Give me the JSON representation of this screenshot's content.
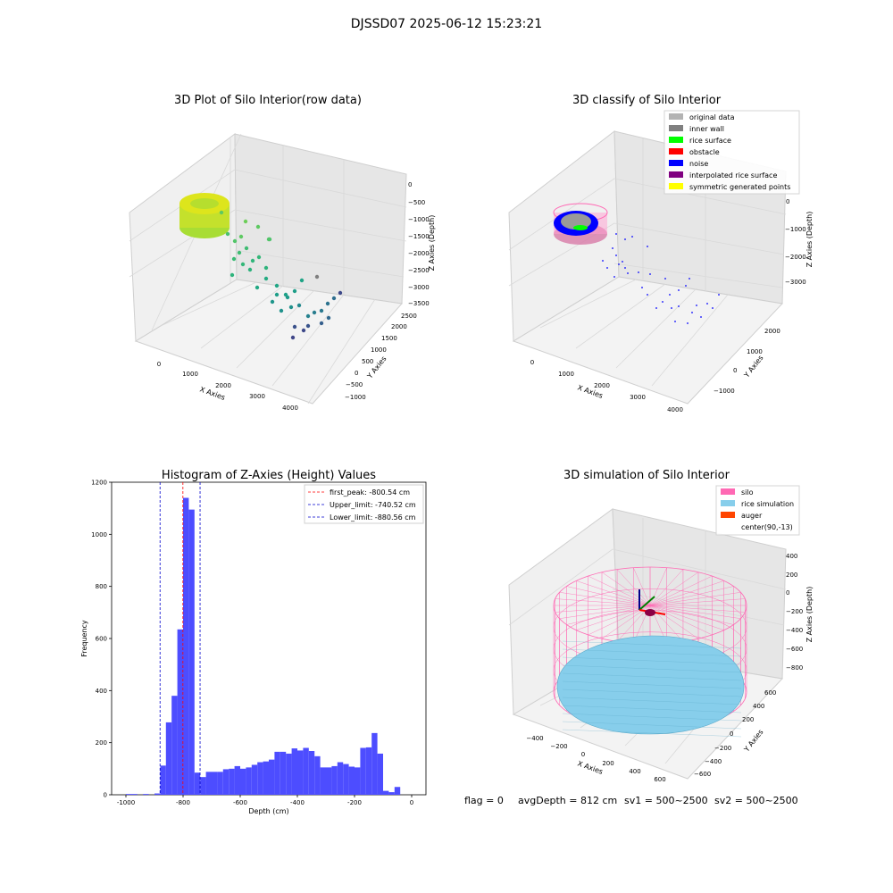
{
  "suptitle": "DJSSD07 2025-06-12 15:23:21",
  "status_line": {
    "flag": "flag = 0",
    "avg_depth": "avgDepth = 812 cm",
    "sv1": "sv1 = 500~2500",
    "sv2": "sv2 = 500~2500"
  },
  "colors": {
    "histogram_bar": "#4d4dff",
    "first_peak_line": "#ff0000",
    "limit_lines": "#0000cc",
    "silo": "#ff69b4",
    "rice_simulation": "#87ceeb",
    "auger": "#ff4500",
    "noise": "#0000ff"
  },
  "chart_data": [
    {
      "type": "scatter3d",
      "title": "3D Plot of Silo Interior(row data)",
      "xlabel": "X Axies",
      "ylabel": "Y Axies",
      "zlabel": "Z Axies (Depth)",
      "x_ticks": [
        "0",
        "1000",
        "2000",
        "3000",
        "4000"
      ],
      "y_ticks": [
        "−1000",
        "−500",
        "0",
        "500",
        "1000",
        "1500",
        "2000",
        "2500"
      ],
      "z_ticks": [
        "0",
        "−500",
        "−1000",
        "−1500",
        "−2000",
        "−2500",
        "−3000",
        "−3500"
      ],
      "colormap": "viridis"
    },
    {
      "type": "scatter3d",
      "title": "3D classify of Silo Interior",
      "xlabel": "X Axies",
      "ylabel": "Y Axies",
      "zlabel": "Z Axies (Depth)",
      "x_ticks": [
        "0",
        "1000",
        "2000",
        "3000",
        "4000"
      ],
      "y_ticks": [
        "−1000",
        "0",
        "1000",
        "2000"
      ],
      "z_ticks": [
        "0",
        "−1000",
        "−2000",
        "−3000"
      ],
      "legend_position": "top-right",
      "legend": [
        {
          "label": "original data",
          "color": "#b3b3b3"
        },
        {
          "label": "inner wall",
          "color": "#808080"
        },
        {
          "label": "rice surface",
          "color": "#00ff00"
        },
        {
          "label": "obstacle",
          "color": "#ff0000"
        },
        {
          "label": "noise",
          "color": "#0000ff"
        },
        {
          "label": "interpolated rice surface",
          "color": "#800080"
        },
        {
          "label": "symmetric generated points",
          "color": "#ffff00"
        }
      ]
    },
    {
      "type": "bar",
      "title": "Histogram of Z-Axies (Height) Values",
      "xlabel": "Depth (cm)",
      "ylabel": "Frequency",
      "xlim": [
        -1050,
        50
      ],
      "ylim": [
        0,
        1200
      ],
      "x_ticks": [
        -1000,
        -800,
        -600,
        -400,
        -200,
        0
      ],
      "y_ticks": [
        0,
        200,
        400,
        600,
        800,
        1000,
        1200
      ],
      "bin_width": 20,
      "bin_starts": [
        -1000,
        -980,
        -960,
        -940,
        -920,
        -900,
        -880,
        -860,
        -840,
        -820,
        -800,
        -780,
        -760,
        -740,
        -720,
        -700,
        -680,
        -660,
        -640,
        -620,
        -600,
        -580,
        -560,
        -540,
        -520,
        -500,
        -480,
        -460,
        -440,
        -420,
        -400,
        -380,
        -360,
        -340,
        -320,
        -300,
        -280,
        -260,
        -240,
        -220,
        -200,
        -180,
        -160,
        -140,
        -120,
        -100,
        -80,
        -60,
        -40,
        -20,
        0
      ],
      "values": [
        3,
        3,
        0,
        3,
        0,
        5,
        112,
        278,
        380,
        635,
        1140,
        1095,
        85,
        68,
        88,
        88,
        88,
        98,
        100,
        110,
        100,
        105,
        115,
        125,
        128,
        135,
        165,
        165,
        158,
        178,
        170,
        180,
        168,
        148,
        105,
        105,
        110,
        125,
        118,
        108,
        105,
        180,
        182,
        237,
        158,
        15,
        10,
        30,
        0,
        0,
        0
      ],
      "reference_lines": [
        {
          "name": "first_peak: -800.54 cm",
          "value": -800.54,
          "color": "#ff0000"
        },
        {
          "name": "Upper_limit: -740.52 cm",
          "value": -740.52,
          "color": "#0000cc"
        },
        {
          "name": "Lower_limit: -880.56 cm",
          "value": -880.56,
          "color": "#0000cc"
        }
      ],
      "legend_position": "top-right",
      "grid": false
    },
    {
      "type": "surface3d",
      "title": "3D simulation of Silo Interior",
      "xlabel": "X Axies",
      "ylabel": "Y Axies",
      "zlabel": "Z Axies (Depth)",
      "x_ticks": [
        "−400",
        "−200",
        "0",
        "200",
        "400",
        "600"
      ],
      "y_ticks": [
        "−600",
        "−400",
        "−200",
        "0",
        "200",
        "400",
        "600"
      ],
      "z_ticks": [
        "400",
        "200",
        "0",
        "−200",
        "−400",
        "−600",
        "−800"
      ],
      "legend_position": "top-right",
      "legend": [
        {
          "label": "silo",
          "color": "#ff69b4"
        },
        {
          "label": "rice simulation",
          "color": "#87ceeb"
        },
        {
          "label": "auger",
          "color": "#ff4500"
        },
        {
          "label": "center(90,-13)",
          "color": "none"
        }
      ]
    }
  ]
}
